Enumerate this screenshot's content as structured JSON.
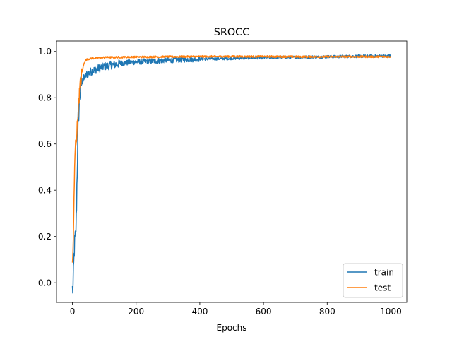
{
  "chart_data": {
    "type": "line",
    "title": "SROCC",
    "xlabel": "Epochs",
    "ylabel": "",
    "xlim": [
      -50,
      1050
    ],
    "ylim": [
      -0.085,
      1.045
    ],
    "xticks": [
      0,
      200,
      400,
      600,
      800,
      1000
    ],
    "yticks": [
      0.0,
      0.2,
      0.4,
      0.6,
      0.8,
      1.0
    ],
    "xtick_labels": [
      "0",
      "200",
      "400",
      "600",
      "800",
      "1000"
    ],
    "ytick_labels": [
      "0.0",
      "0.2",
      "0.4",
      "0.6",
      "0.8",
      "1.0"
    ],
    "grid": false,
    "legend_position": "lower-right",
    "series": [
      {
        "name": "train",
        "color": "#1f77b4",
        "noise": "high",
        "x": [
          0,
          2,
          4,
          6,
          8,
          10,
          12,
          14,
          16,
          18,
          20,
          22,
          25,
          28,
          30,
          35,
          40,
          45,
          50,
          60,
          70,
          80,
          90,
          100,
          120,
          140,
          160,
          180,
          200,
          250,
          300,
          350,
          400,
          450,
          500,
          550,
          600,
          700,
          800,
          900,
          1000
        ],
        "y": [
          -0.03,
          -0.02,
          0.07,
          0.15,
          0.18,
          0.2,
          0.27,
          0.42,
          0.55,
          0.7,
          0.74,
          0.79,
          0.84,
          0.86,
          0.87,
          0.88,
          0.89,
          0.9,
          0.905,
          0.915,
          0.92,
          0.925,
          0.93,
          0.935,
          0.94,
          0.945,
          0.95,
          0.952,
          0.955,
          0.958,
          0.962,
          0.965,
          0.967,
          0.968,
          0.97,
          0.972,
          0.973,
          0.975,
          0.977,
          0.979,
          0.98
        ]
      },
      {
        "name": "test",
        "color": "#ff7f0e",
        "noise": "low",
        "x": [
          0,
          2,
          4,
          6,
          8,
          10,
          12,
          14,
          16,
          18,
          20,
          22,
          25,
          28,
          30,
          33,
          36,
          40,
          45,
          50,
          60,
          80,
          100,
          150,
          200,
          300,
          400,
          500,
          600,
          700,
          800,
          900,
          1000
        ],
        "y": [
          0.07,
          0.15,
          0.28,
          0.42,
          0.55,
          0.6,
          0.62,
          0.65,
          0.7,
          0.75,
          0.79,
          0.82,
          0.86,
          0.89,
          0.91,
          0.93,
          0.945,
          0.96,
          0.965,
          0.967,
          0.97,
          0.972,
          0.974,
          0.975,
          0.976,
          0.977,
          0.978,
          0.978,
          0.978,
          0.977,
          0.977,
          0.977,
          0.977
        ]
      }
    ]
  }
}
